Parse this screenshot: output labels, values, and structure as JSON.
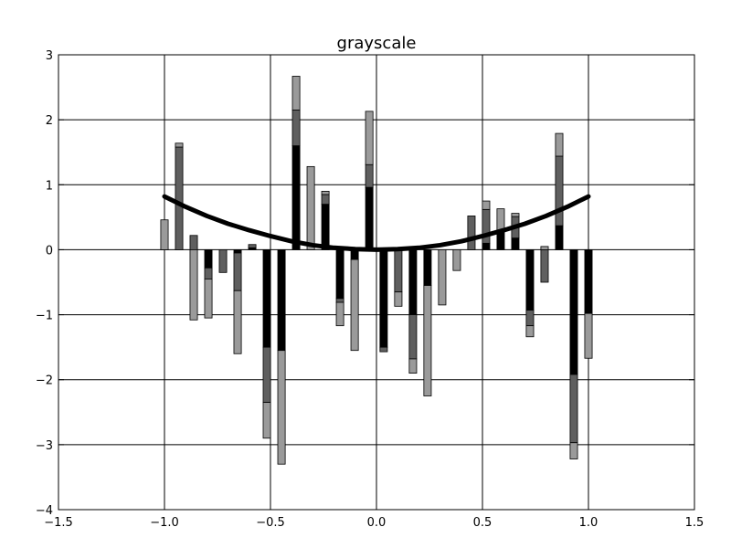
{
  "chart_data": {
    "type": "bar",
    "title": "grayscale",
    "xlabel": "",
    "ylabel": "",
    "xlim": [
      -1.5,
      1.5
    ],
    "ylim": [
      -4,
      3
    ],
    "x_ticks": [
      "−1.5",
      "−1.0",
      "−0.5",
      "0.0",
      "0.5",
      "1.0",
      "1.5"
    ],
    "x_tick_values": [
      -1.5,
      -1.0,
      -0.5,
      0.0,
      0.5,
      1.0,
      1.5
    ],
    "y_ticks": [
      "3",
      "2",
      "1",
      "0",
      "−1",
      "−2",
      "−3",
      "−4"
    ],
    "y_tick_values": [
      3,
      2,
      1,
      0,
      -1,
      -2,
      -3,
      -4
    ],
    "grid": true,
    "bar_width": 0.035,
    "series_colors": [
      "#000000",
      "#5f5f5f",
      "#9a9a9a"
    ],
    "x": [
      -1.0,
      -0.931,
      -0.862,
      -0.793,
      -0.724,
      -0.655,
      -0.586,
      -0.517,
      -0.448,
      -0.379,
      -0.31,
      -0.241,
      -0.172,
      -0.103,
      -0.034,
      0.034,
      0.103,
      0.172,
      0.241,
      0.31,
      0.379,
      0.448,
      0.517,
      0.586,
      0.655,
      0.724,
      0.793,
      0.862,
      0.931,
      1.0
    ],
    "series": [
      {
        "values": [
          0.0,
          0.0,
          0.0,
          -0.28,
          0.0,
          -0.05,
          0.03,
          -1.5,
          -1.55,
          1.6,
          0.0,
          0.7,
          -0.75,
          -0.15,
          0.96,
          -1.5,
          0.0,
          -1.0,
          -0.55,
          0.0,
          0.0,
          0.0,
          0.1,
          0.27,
          0.18,
          -0.93,
          0.0,
          0.37,
          -1.92,
          -0.98
        ]
      },
      {
        "values": [
          0.0,
          1.58,
          0.22,
          -0.17,
          -0.35,
          -0.58,
          0.05,
          -0.85,
          0.0,
          0.55,
          0.0,
          0.15,
          -0.06,
          0.0,
          0.35,
          -0.07,
          -0.65,
          -0.68,
          0.0,
          0.0,
          0.0,
          0.52,
          0.52,
          0.0,
          0.33,
          -0.24,
          -0.5,
          1.07,
          -1.05,
          0.0
        ]
      },
      {
        "values": [
          0.46,
          0.06,
          -1.08,
          -0.6,
          0.0,
          -0.97,
          0.0,
          -0.55,
          -1.75,
          0.52,
          1.28,
          0.05,
          -0.36,
          -1.4,
          0.82,
          0.0,
          -0.22,
          -0.22,
          -1.7,
          -0.85,
          -0.32,
          0.0,
          0.13,
          0.36,
          0.05,
          -0.17,
          0.05,
          0.35,
          -0.25,
          -0.69
        ]
      }
    ],
    "curve": {
      "x": [
        -1.0,
        -0.9,
        -0.8,
        -0.7,
        -0.6,
        -0.5,
        -0.4,
        -0.3,
        -0.2,
        -0.1,
        0.0,
        0.1,
        0.2,
        0.3,
        0.4,
        0.5,
        0.6,
        0.7,
        0.8,
        0.9,
        1.0
      ],
      "y": [
        0.82,
        0.66,
        0.52,
        0.4,
        0.3,
        0.21,
        0.13,
        0.07,
        0.03,
        0.01,
        0.0,
        0.01,
        0.03,
        0.07,
        0.13,
        0.21,
        0.3,
        0.4,
        0.52,
        0.66,
        0.82
      ],
      "color": "#000000"
    }
  }
}
